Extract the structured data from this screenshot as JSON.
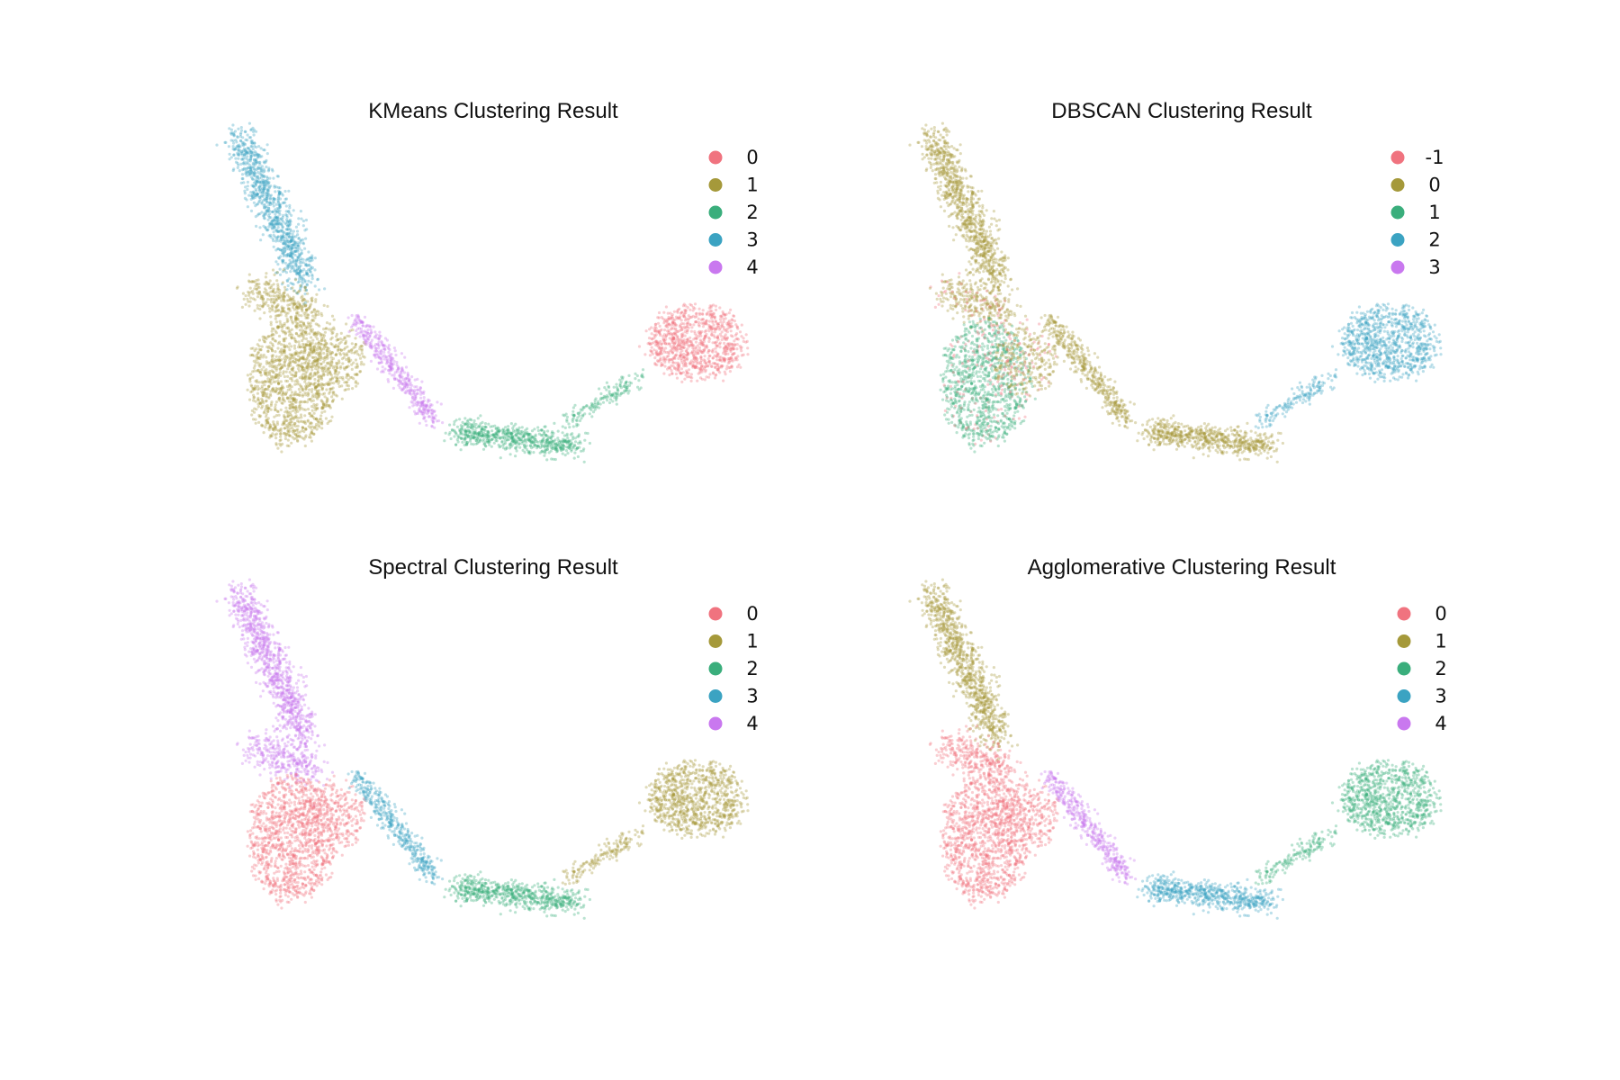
{
  "palette": [
    "#f0737f",
    "#a5993a",
    "#3aae7c",
    "#3ba3c2",
    "#c978ef"
  ],
  "chart_data": [
    {
      "type": "scatter",
      "title": "KMeans Clustering Result",
      "legend_position": "top-right",
      "grid": false,
      "axes_visible": false,
      "legend": [
        "0",
        "1",
        "2",
        "3",
        "4"
      ],
      "shape_profile": "main",
      "assignment": {
        "top": 3,
        "upper": 1,
        "core": 1,
        "corex": 1,
        "purple": 4,
        "mid": 2,
        "bridge": 2,
        "right": 0
      },
      "noise_rate": 0,
      "colors": [
        "#f0737f",
        "#a5993a",
        "#3aae7c",
        "#3ba3c2",
        "#c978ef"
      ]
    },
    {
      "type": "scatter",
      "title": "DBSCAN Clustering Result",
      "legend_position": "top-right",
      "grid": false,
      "axes_visible": false,
      "legend": [
        "-1",
        "0",
        "1",
        "2",
        "3"
      ],
      "shape_profile": "main",
      "assignment": {
        "top": 1,
        "upper": 1,
        "core": 2,
        "corex": 1,
        "purple": 1,
        "mid": 1,
        "bridge": 3,
        "right": 3
      },
      "noise_rate": 0.12,
      "colors": [
        "#f0737f",
        "#a5993a",
        "#3aae7c",
        "#3ba3c2",
        "#c978ef"
      ]
    },
    {
      "type": "scatter",
      "title": "Spectral Clustering Result",
      "legend_position": "top-right",
      "grid": false,
      "axes_visible": false,
      "legend": [
        "0",
        "1",
        "2",
        "3",
        "4"
      ],
      "shape_profile": "main",
      "assignment": {
        "top": 4,
        "upper": 4,
        "core": 0,
        "corex": 0,
        "purple": 3,
        "mid": 2,
        "bridge": 1,
        "right": 1
      },
      "noise_rate": 0,
      "colors": [
        "#f0737f",
        "#a5993a",
        "#3aae7c",
        "#3ba3c2",
        "#c978ef"
      ]
    },
    {
      "type": "scatter",
      "title": "Agglomerative Clustering Result",
      "legend_position": "top-right",
      "grid": false,
      "axes_visible": false,
      "legend": [
        "0",
        "1",
        "2",
        "3",
        "4"
      ],
      "shape_profile": "main",
      "assignment": {
        "top": 1,
        "upper": 0,
        "core": 0,
        "corex": 0,
        "purple": 4,
        "mid": 3,
        "bridge": 2,
        "right": 2
      },
      "noise_rate": 0,
      "colors": [
        "#f0737f",
        "#a5993a",
        "#3aae7c",
        "#3ba3c2",
        "#c978ef"
      ]
    }
  ]
}
